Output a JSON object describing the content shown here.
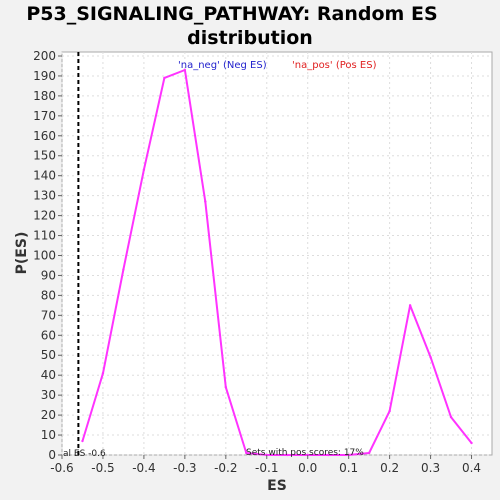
{
  "chart_data": {
    "type": "line",
    "title_line1": "P53_SIGNALING_PATHWAY: Random ES",
    "title_line2": "distribution",
    "xlabel": "ES",
    "ylabel": "P(ES)",
    "xlim": [
      -0.6,
      0.45
    ],
    "ylim": [
      0,
      202
    ],
    "x_ticks": [
      -0.6,
      -0.5,
      -0.4,
      -0.3,
      -0.2,
      -0.1,
      0.0,
      0.1,
      0.2,
      0.3,
      0.4
    ],
    "x_tick_labels": [
      "-0.6",
      "-0.5",
      "-0.4",
      "-0.3",
      "-0.2",
      "-0.1",
      "0.0",
      "0.1",
      "0.2",
      "0.3",
      "0.4"
    ],
    "y_ticks": [
      0,
      10,
      20,
      30,
      40,
      50,
      60,
      70,
      80,
      90,
      100,
      110,
      120,
      130,
      140,
      150,
      160,
      170,
      180,
      190,
      200
    ],
    "grid": true,
    "series": [
      {
        "name": "'na_neg' (Neg ES)",
        "color": "#1f1fcc",
        "x": [],
        "y": []
      },
      {
        "name": "'na_pos' (Pos ES)",
        "color": "#e02020",
        "x": [],
        "y": []
      },
      {
        "color": "#ff33ff",
        "x": [
          -0.55,
          -0.5,
          -0.45,
          -0.4,
          -0.35,
          -0.3,
          -0.25,
          -0.2,
          -0.15,
          -0.1,
          -0.05,
          0.0,
          0.05,
          0.1,
          0.15,
          0.2,
          0.25,
          0.3,
          0.35,
          0.4
        ],
        "y": [
          7,
          41,
          93,
          143,
          189,
          193,
          127,
          34,
          1,
          0,
          0,
          0,
          0,
          0,
          1,
          22,
          75,
          49,
          19,
          6
        ]
      }
    ],
    "vline": {
      "x": -0.56,
      "style": "dashed",
      "color": "#000000"
    },
    "annotations": {
      "actual_es": "al ES -0.6",
      "pos_scores": "Sets with pos scores: 17%"
    }
  }
}
